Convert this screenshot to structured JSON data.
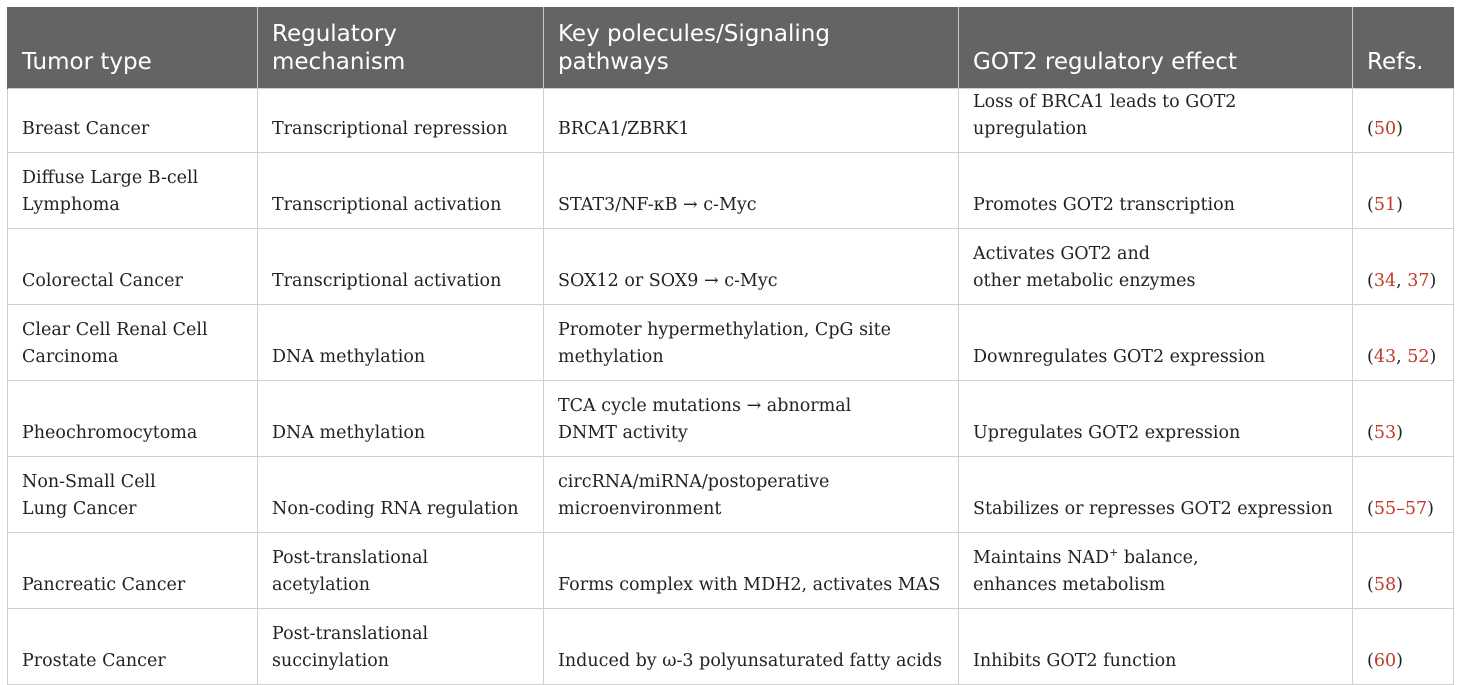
{
  "headers": [
    "Tumor type",
    "Regulatory mechanism",
    "Key polecules/Signaling pathways",
    "GOT2 regulatory effect",
    "Refs."
  ],
  "rows": [
    {
      "tumor": "Breast Cancer",
      "mechanism": "Transcriptional repression",
      "pathway": "BRCA1/ZBRK1",
      "effect": "Loss of BRCA1 leads to GOT2 upregulation",
      "refs": [
        "50"
      ]
    },
    {
      "tumor": "Diffuse Large B-cell Lymphoma",
      "mechanism": "Transcriptional activation",
      "pathway": "STAT3/NF-κB → c-Myc",
      "effect": "Promotes GOT2 transcription",
      "refs": [
        "51"
      ]
    },
    {
      "tumor": "Colorectal Cancer",
      "mechanism": "Transcriptional activation",
      "pathway": "SOX12 or SOX9 → c-Myc",
      "effect": "Activates GOT2 and other metabolic enzymes",
      "refs": [
        "34",
        "37"
      ]
    },
    {
      "tumor": "Clear Cell Renal Cell Carcinoma",
      "mechanism": "DNA methylation",
      "pathway": "Promoter hypermethylation, CpG site methylation",
      "effect": "Downregulates GOT2 expression",
      "refs": [
        "43",
        "52"
      ]
    },
    {
      "tumor": "Pheochromocytoma",
      "mechanism": "DNA methylation",
      "pathway": "TCA cycle mutations → abnormal DNMT activity",
      "effect": "Upregulates GOT2 expression",
      "refs": [
        "53"
      ]
    },
    {
      "tumor": "Non-Small Cell Lung Cancer",
      "mechanism": "Non-coding RNA regulation",
      "pathway": "circRNA/miRNA/postoperative microenvironment",
      "effect": "Stabilizes or represses GOT2 expression",
      "refs": [
        "55–57"
      ]
    },
    {
      "tumor": "Pancreatic Cancer",
      "mechanism": "Post-translational acetylation",
      "pathway": "Forms complex with MDH2, activates MAS",
      "effect_pre": "Maintains NAD",
      "effect_sup": "+",
      "effect_post": " balance, enhances metabolism",
      "refs": [
        "58"
      ]
    },
    {
      "tumor": "Prostate Cancer",
      "mechanism": "Post-translational succinylation",
      "pathway": "Induced by ω-3 polyunsaturated fatty acids",
      "effect": "Inhibits GOT2 function",
      "refs": [
        "60"
      ]
    }
  ],
  "punct": {
    "open": "(",
    "close": ")",
    "sep": ", "
  }
}
